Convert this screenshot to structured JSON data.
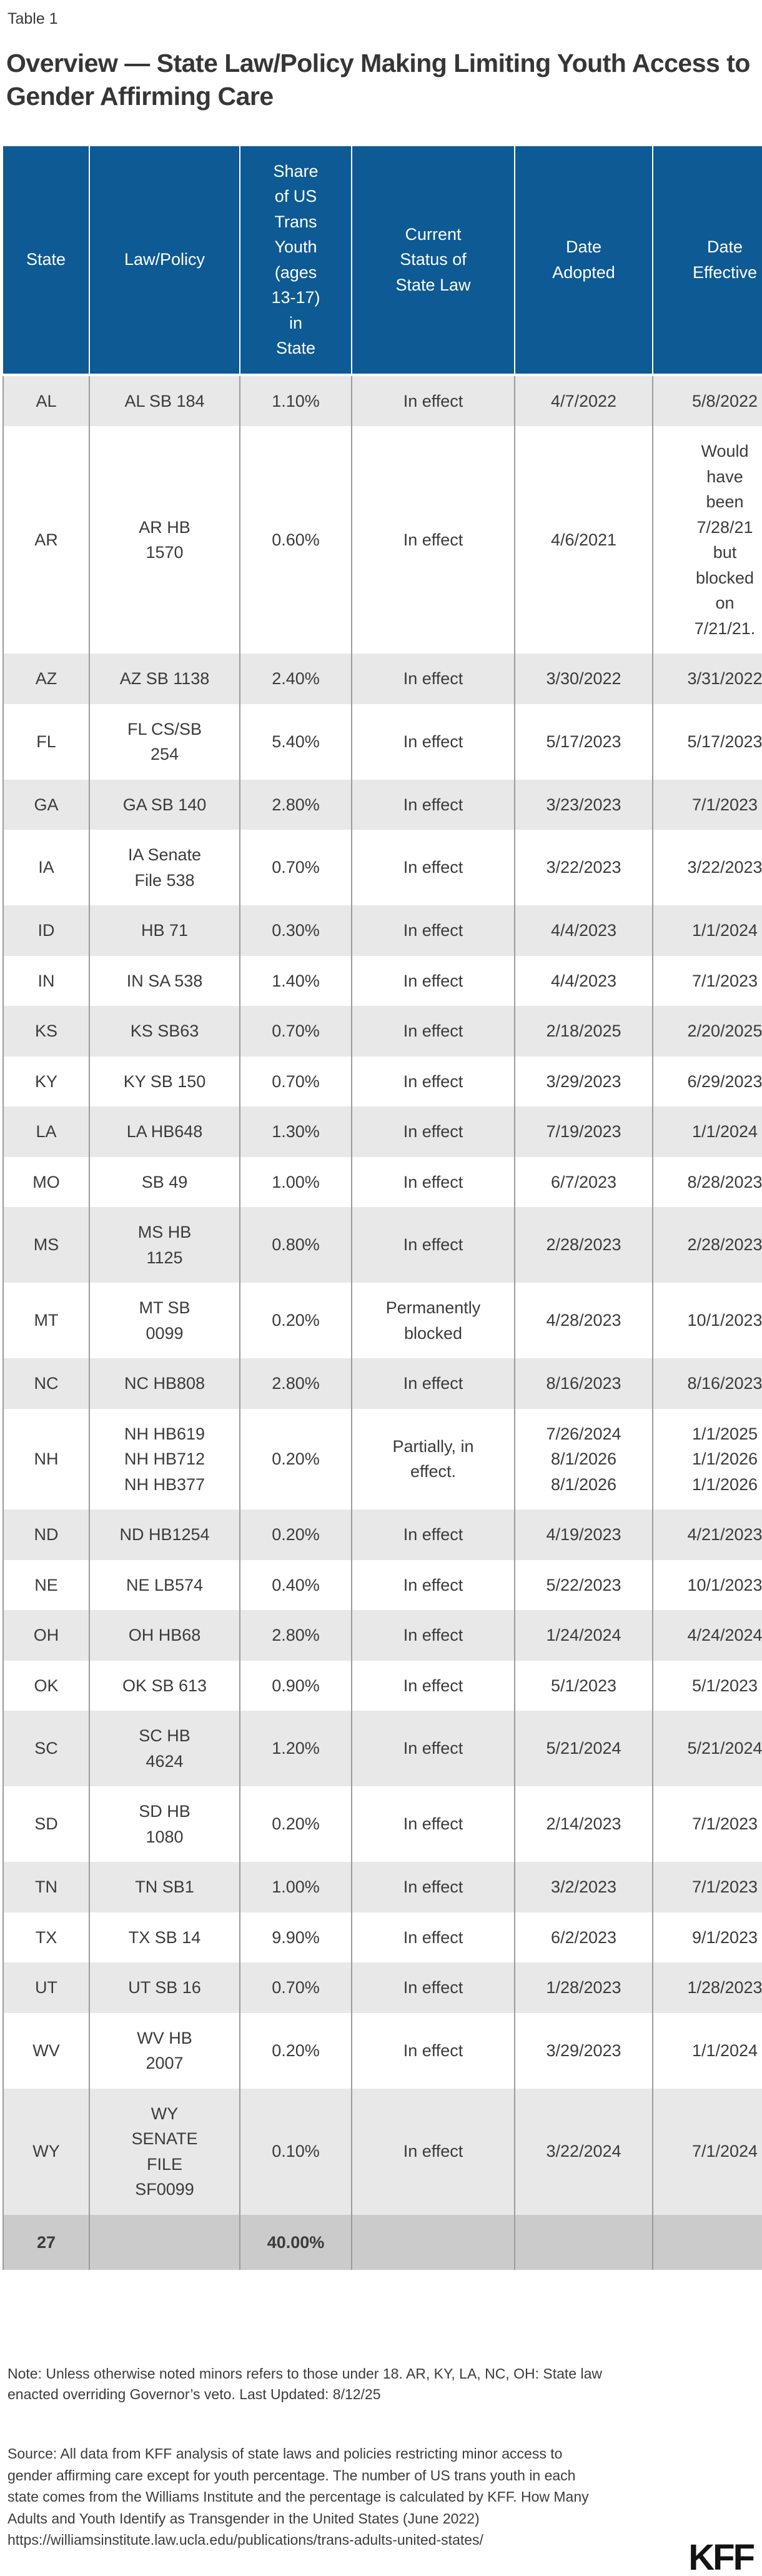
{
  "page": {
    "table_label": "Table 1",
    "title": "Overview — State Law/Policy Making Limiting Youth Access to\nGender Affirming Care"
  },
  "chart_data": {
    "type": "table",
    "title": "Overview — State Law/Policy Making Limiting Youth Access to Gender Affirming Care",
    "columns": [
      "State",
      "Law/Policy",
      "Share\nof US\nTrans\nYouth\n(ages\n13-17)\nin\nState",
      "Current\nStatus of\nState Law",
      "Date\nAdopted",
      "Date\nEffective"
    ],
    "rows": [
      {
        "state": "AL",
        "law": "AL SB 184",
        "share": "1.10%",
        "status": "In effect",
        "adopted": "4/7/2022",
        "effective": "5/8/2022",
        "shaded": true
      },
      {
        "state": "AR",
        "law": "AR HB\n1570",
        "share": "0.60%",
        "status": "In effect",
        "adopted": "4/6/2021",
        "effective": "Would\nhave\nbeen\n7/28/21\nbut\nblocked\non\n7/21/21.",
        "shaded": false
      },
      {
        "state": "AZ",
        "law": "AZ SB 1138",
        "share": "2.40%",
        "status": "In effect",
        "adopted": "3/30/2022",
        "effective": "3/31/2022",
        "shaded": true
      },
      {
        "state": "FL",
        "law": "FL CS/SB\n254",
        "share": "5.40%",
        "status": "In effect",
        "adopted": "5/17/2023",
        "effective": "5/17/2023",
        "shaded": false
      },
      {
        "state": "GA",
        "law": "GA SB 140",
        "share": "2.80%",
        "status": "In effect",
        "adopted": "3/23/2023",
        "effective": "7/1/2023",
        "shaded": true
      },
      {
        "state": "IA",
        "law": "IA Senate\nFile 538",
        "share": "0.70%",
        "status": "In effect",
        "adopted": "3/22/2023",
        "effective": "3/22/2023",
        "shaded": false
      },
      {
        "state": "ID",
        "law": "HB 71",
        "share": "0.30%",
        "status": "In effect",
        "adopted": "4/4/2023",
        "effective": "1/1/2024",
        "shaded": true
      },
      {
        "state": "IN",
        "law": "IN SA 538",
        "share": "1.40%",
        "status": "In effect",
        "adopted": "4/4/2023",
        "effective": "7/1/2023",
        "shaded": false
      },
      {
        "state": "KS",
        "law": "KS SB63",
        "share": "0.70%",
        "status": "In effect",
        "adopted": "2/18/2025",
        "effective": "2/20/2025",
        "shaded": true
      },
      {
        "state": "KY",
        "law": "KY SB 150",
        "share": "0.70%",
        "status": "In effect",
        "adopted": "3/29/2023",
        "effective": "6/29/2023",
        "shaded": false
      },
      {
        "state": "LA",
        "law": "LA HB648",
        "share": "1.30%",
        "status": "In effect",
        "adopted": "7/19/2023",
        "effective": "1/1/2024",
        "shaded": true
      },
      {
        "state": "MO",
        "law": "SB 49",
        "share": "1.00%",
        "status": "In effect",
        "adopted": "6/7/2023",
        "effective": "8/28/2023",
        "shaded": false
      },
      {
        "state": "MS",
        "law": "MS HB\n1125",
        "share": "0.80%",
        "status": "In effect",
        "adopted": "2/28/2023",
        "effective": "2/28/2023",
        "shaded": true
      },
      {
        "state": "MT",
        "law": "MT SB\n0099",
        "share": "0.20%",
        "status": "Permanently\nblocked",
        "adopted": "4/28/2023",
        "effective": "10/1/2023",
        "shaded": false
      },
      {
        "state": "NC",
        "law": "NC HB808",
        "share": "2.80%",
        "status": "In effect",
        "adopted": "8/16/2023",
        "effective": "8/16/2023",
        "shaded": true
      },
      {
        "state": "NH",
        "law": "NH HB619\nNH HB712\nNH HB377",
        "share": "0.20%",
        "status": "Partially, in\neffect.",
        "adopted": "7/26/2024\n8/1/2026\n8/1/2026",
        "effective": "1/1/2025\n1/1/2026\n1/1/2026",
        "shaded": false
      },
      {
        "state": "ND",
        "law": "ND HB1254",
        "share": "0.20%",
        "status": "In effect",
        "adopted": "4/19/2023",
        "effective": "4/21/2023",
        "shaded": true
      },
      {
        "state": "NE",
        "law": "NE LB574",
        "share": "0.40%",
        "status": "In effect",
        "adopted": "5/22/2023",
        "effective": "10/1/2023",
        "shaded": false
      },
      {
        "state": "OH",
        "law": "OH HB68",
        "share": "2.80%",
        "status": "In effect",
        "adopted": "1/24/2024",
        "effective": "4/24/2024",
        "shaded": true
      },
      {
        "state": "OK",
        "law": "OK SB 613",
        "share": "0.90%",
        "status": "In effect",
        "adopted": "5/1/2023",
        "effective": "5/1/2023",
        "shaded": false
      },
      {
        "state": "SC",
        "law": "SC HB\n4624",
        "share": "1.20%",
        "status": "In effect",
        "adopted": "5/21/2024",
        "effective": "5/21/2024",
        "shaded": true
      },
      {
        "state": "SD",
        "law": "SD HB\n1080",
        "share": "0.20%",
        "status": "In effect",
        "adopted": "2/14/2023",
        "effective": "7/1/2023",
        "shaded": false
      },
      {
        "state": "TN",
        "law": "TN SB1",
        "share": "1.00%",
        "status": "In effect",
        "adopted": "3/2/2023",
        "effective": "7/1/2023",
        "shaded": true
      },
      {
        "state": "TX",
        "law": "TX SB 14",
        "share": "9.90%",
        "status": "In effect",
        "adopted": "6/2/2023",
        "effective": "9/1/2023",
        "shaded": false
      },
      {
        "state": "UT",
        "law": "UT SB 16",
        "share": "0.70%",
        "status": "In effect",
        "adopted": "1/28/2023",
        "effective": "1/28/2023",
        "shaded": true
      },
      {
        "state": "WV",
        "law": "WV HB\n2007",
        "share": "0.20%",
        "status": "In effect",
        "adopted": "3/29/2023",
        "effective": "1/1/2024",
        "shaded": false
      },
      {
        "state": "WY",
        "law": "WY\nSENATE\nFILE\nSF0099",
        "share": "0.10%",
        "status": "In effect",
        "adopted": "3/22/2024",
        "effective": "7/1/2024",
        "shaded": true
      }
    ],
    "total_row": {
      "state": "27",
      "law": "",
      "share": "40.00%",
      "status": "",
      "adopted": "",
      "effective": ""
    }
  },
  "footer": {
    "note": "Note: Unless otherwise noted minors refers to those under 18. AR, KY, LA, NC, OH: State law\nenacted overriding Governor’s veto. Last Updated: 8/12/25",
    "source_text": "Source: All data from KFF analysis of state laws and policies restricting minor access to\ngender affirming care except for youth percentage. The number of US trans youth in each\nstate comes from the Williams Institute and the percentage is calculated by KFF. How Many\nAdults and Youth Identify as Transgender in the United States (June 2022)",
    "source_url": "https://williamsinstitute.law.ucla.edu/publications/trans-adults-united-states/",
    "logo": "KFF"
  },
  "colors": {
    "header-bg": "#0E5A94",
    "header-text": "#FFFFFF",
    "row-shaded": "#E8E8E8",
    "row-white": "#FFFFFF",
    "total-row": "#CBCBCB",
    "border": "#9B9B9B",
    "text": "#3B3B3B",
    "title": "#363636",
    "logo": "#131313"
  }
}
